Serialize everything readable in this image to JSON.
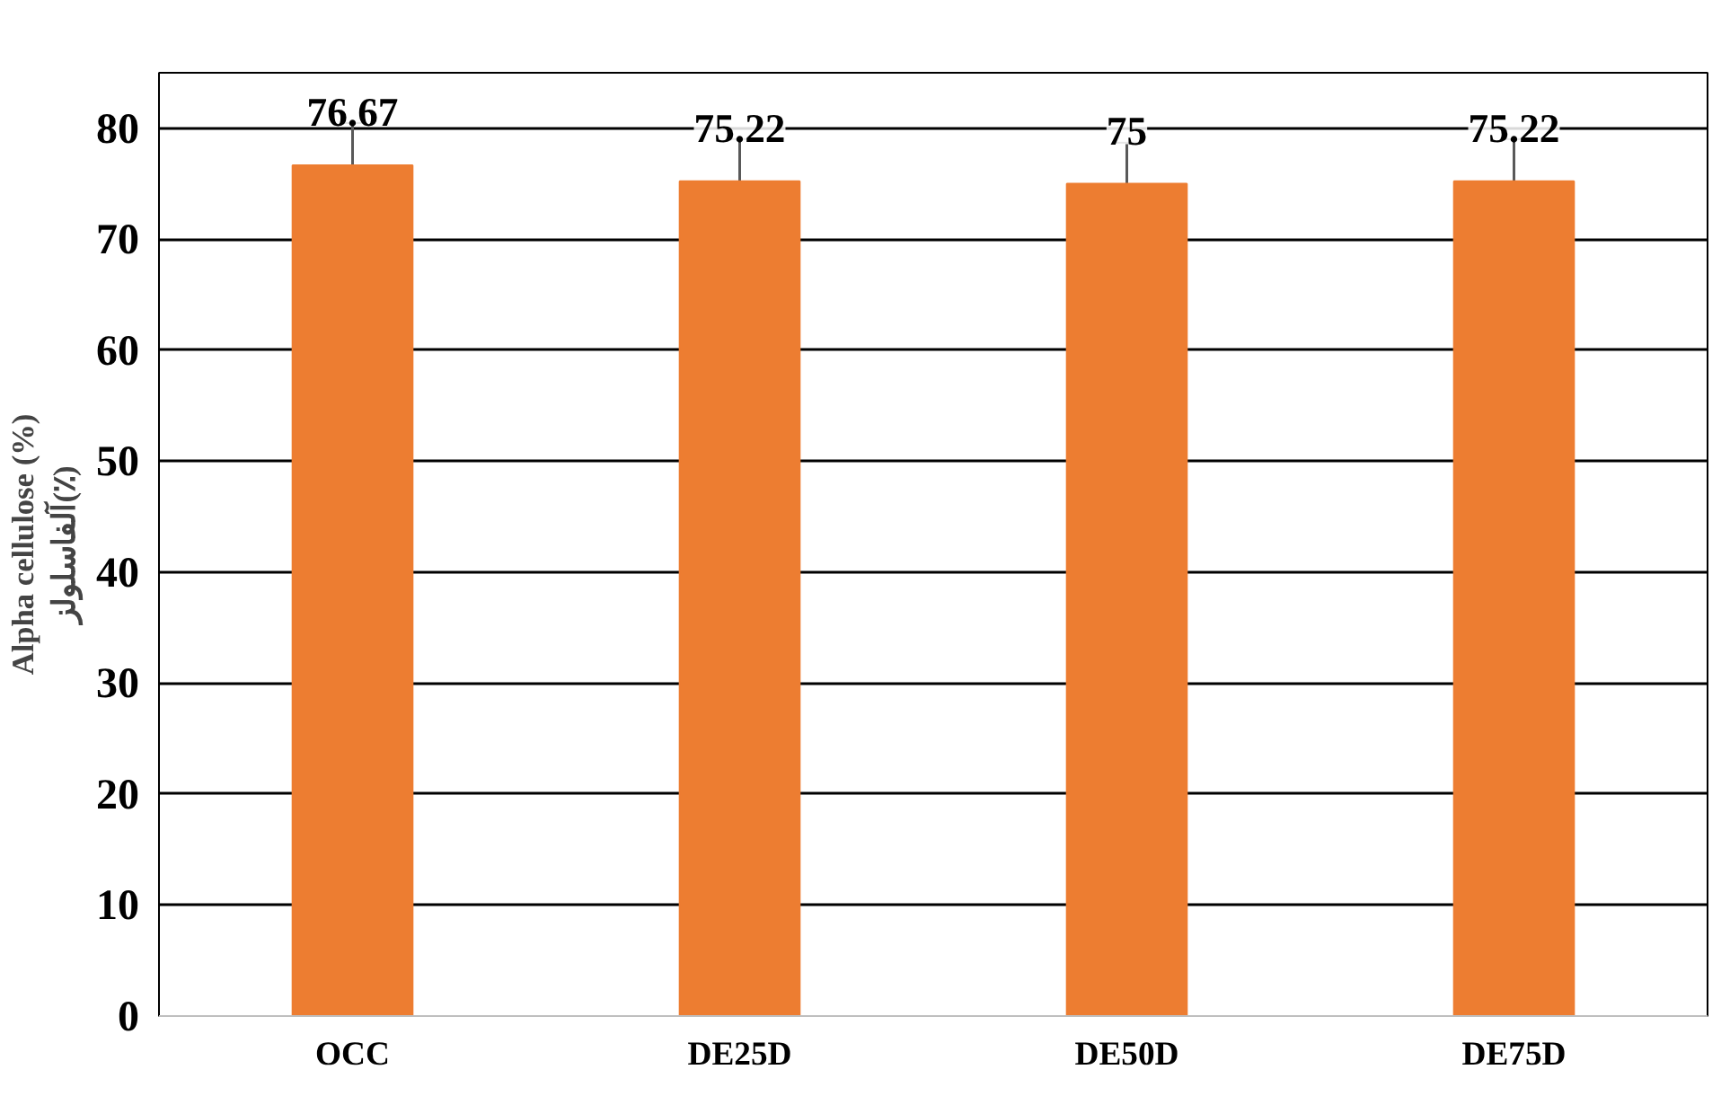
{
  "chart_data": {
    "type": "bar",
    "ylabel": "Alpha cellulose (%)\nآلفاسلولز(٪)",
    "categories": [
      "OCC",
      "DE25D",
      "DE50D",
      "DE75D"
    ],
    "values": [
      76.67,
      75.22,
      75,
      75.22
    ],
    "errors": [
      3.8,
      3.8,
      3.7,
      3.8
    ],
    "color": "#ed7d31",
    "ylim": [
      0,
      85
    ],
    "yticks": [
      0,
      10,
      20,
      30,
      40,
      50,
      60,
      70,
      80
    ],
    "grid": "y",
    "data_labels": true
  }
}
